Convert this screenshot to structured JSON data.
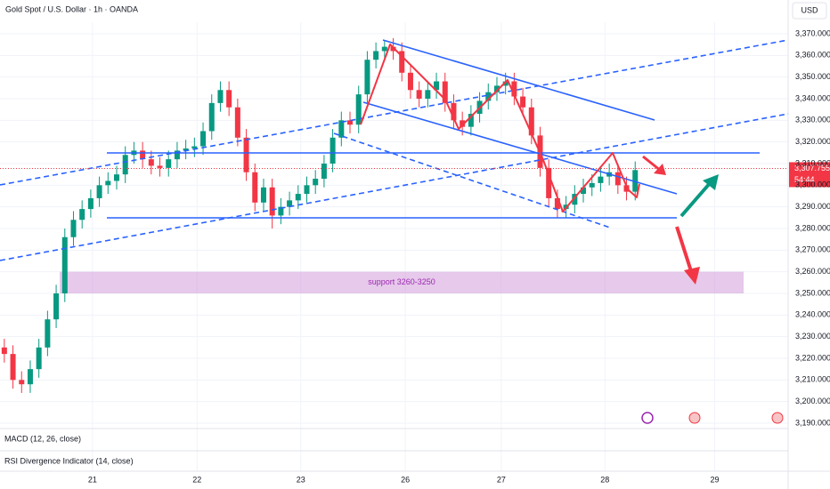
{
  "chart_data": {
    "type": "candlestick",
    "title": "Gold Spot / U.S. Dollar · 1h · OANDA",
    "currency": "USD",
    "up_color": "#089981",
    "down_color": "#f23645",
    "xlim": [
      -0.5,
      90.7
    ],
    "xticks": [
      {
        "value": 10.2,
        "label": "21"
      },
      {
        "value": 22.3,
        "label": "22"
      },
      {
        "value": 34.3,
        "label": "23"
      },
      {
        "value": 46.4,
        "label": "26"
      },
      {
        "value": 57.5,
        "label": "27"
      },
      {
        "value": 69.5,
        "label": "28"
      },
      {
        "value": 82.2,
        "label": "29"
      }
    ],
    "ylim": [
      3190,
      3370
    ],
    "yticks": [
      {
        "value": 3190,
        "label": "3,190.000"
      },
      {
        "value": 3200,
        "label": "3,200.000"
      },
      {
        "value": 3210,
        "label": "3,210.000"
      },
      {
        "value": 3220,
        "label": "3,220.000"
      },
      {
        "value": 3230,
        "label": "3,230.000"
      },
      {
        "value": 3240,
        "label": "3,240.000"
      },
      {
        "value": 3250,
        "label": "3,250.000"
      },
      {
        "value": 3260,
        "label": "3,260.000"
      },
      {
        "value": 3270,
        "label": "3,270.000"
      },
      {
        "value": 3280,
        "label": "3,280.000"
      },
      {
        "value": 3290,
        "label": "3,290.000"
      },
      {
        "value": 3300,
        "label": "3,300.000"
      },
      {
        "value": 3310,
        "label": "3,310.000"
      },
      {
        "value": 3320,
        "label": "3,320.000"
      },
      {
        "value": 3330,
        "label": "3,330.000"
      },
      {
        "value": 3340,
        "label": "3,340.000"
      },
      {
        "value": 3350,
        "label": "3,350.000"
      },
      {
        "value": 3360,
        "label": "3,360.000"
      },
      {
        "value": 3370,
        "label": "3,370.000"
      }
    ],
    "grid": true,
    "open": [
      3225,
      3222,
      3210,
      3208,
      3215,
      3225,
      3238,
      3250,
      3276,
      3284,
      3289,
      3294,
      3300,
      3302,
      3305,
      3314,
      3316,
      3312,
      3309,
      3308,
      3312,
      3316,
      3317,
      3318,
      3325,
      3338,
      3344,
      3336,
      3322,
      3306,
      3292,
      3299,
      3286,
      3290,
      3293,
      3296,
      3300,
      3303,
      3310,
      3322,
      3330,
      3328,
      3342,
      3358,
      3362,
      3364,
      3362,
      3352,
      3344,
      3340,
      3344,
      3348,
      3338,
      3330,
      3327,
      3333,
      3339,
      3343,
      3346,
      3348,
      3341,
      3336,
      3323,
      3308,
      3294,
      3289,
      3291,
      3296,
      3299,
      3301,
      3304,
      3306,
      3300,
      3297
    ],
    "high": [
      3229,
      3226,
      3214,
      3219,
      3229,
      3242,
      3254,
      3280,
      3288,
      3293,
      3298,
      3304,
      3306,
      3309,
      3318,
      3320,
      3320,
      3316,
      3313,
      3316,
      3320,
      3321,
      3322,
      3329,
      3342,
      3348,
      3348,
      3340,
      3326,
      3310,
      3303,
      3303,
      3294,
      3297,
      3300,
      3304,
      3307,
      3314,
      3326,
      3334,
      3334,
      3346,
      3362,
      3366,
      3367,
      3368,
      3366,
      3356,
      3348,
      3348,
      3352,
      3352,
      3342,
      3334,
      3337,
      3343,
      3347,
      3350,
      3352,
      3352,
      3345,
      3340,
      3327,
      3312,
      3298,
      3295,
      3300,
      3303,
      3305,
      3308,
      3310,
      3310,
      3304,
      3311
    ],
    "low": [
      3218,
      3206,
      3204,
      3204,
      3211,
      3221,
      3234,
      3246,
      3272,
      3280,
      3285,
      3290,
      3296,
      3298,
      3301,
      3310,
      3308,
      3305,
      3304,
      3304,
      3308,
      3312,
      3313,
      3314,
      3321,
      3334,
      3332,
      3318,
      3302,
      3288,
      3288,
      3280,
      3282,
      3286,
      3289,
      3292,
      3296,
      3299,
      3306,
      3318,
      3324,
      3324,
      3338,
      3354,
      3358,
      3358,
      3348,
      3340,
      3336,
      3336,
      3340,
      3334,
      3326,
      3323,
      3323,
      3329,
      3335,
      3339,
      3342,
      3337,
      3332,
      3319,
      3304,
      3290,
      3285,
      3285,
      3287,
      3292,
      3295,
      3297,
      3300,
      3296,
      3293,
      3293
    ],
    "close": [
      3222,
      3210,
      3208,
      3215,
      3225,
      3238,
      3250,
      3276,
      3284,
      3289,
      3294,
      3300,
      3302,
      3305,
      3314,
      3316,
      3312,
      3309,
      3308,
      3312,
      3316,
      3317,
      3318,
      3325,
      3338,
      3344,
      3336,
      3322,
      3306,
      3292,
      3299,
      3286,
      3290,
      3293,
      3296,
      3300,
      3303,
      3310,
      3322,
      3330,
      3328,
      3342,
      3358,
      3362,
      3364,
      3362,
      3352,
      3344,
      3340,
      3344,
      3348,
      3338,
      3330,
      3327,
      3333,
      3339,
      3343,
      3346,
      3348,
      3341,
      3336,
      3323,
      3308,
      3294,
      3289,
      3291,
      3296,
      3299,
      3301,
      3304,
      3306,
      3300,
      3297,
      3307
    ],
    "last_price": {
      "value": 3307.755,
      "label": "3,307.755"
    },
    "countdown": "54:44",
    "support_zone": {
      "label": "support 3260-3250",
      "low": 3250,
      "high": 3260
    },
    "indicators": [
      "MACD (12, 26, close)",
      "RSI Divergence Indicator (14, close)"
    ]
  }
}
